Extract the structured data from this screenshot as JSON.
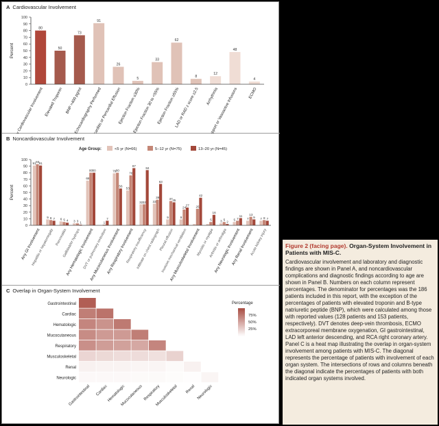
{
  "panelA": {
    "letter": "A",
    "title": "Cardiovascular Involvement",
    "ylabel": "Percent",
    "chart_data": {
      "type": "bar",
      "ylim": [
        0,
        100
      ],
      "yticks": [
        0,
        10,
        20,
        30,
        40,
        50,
        60,
        70,
        80,
        90,
        100
      ],
      "categories": [
        "Any Cardiovascular Involvement",
        "Elevated Troponin",
        "BNP >400 pg/ml",
        "Echocardiography Performed",
        "Pericarditis or Pericardial Effusion",
        "Ejection Fraction ≤30%",
        "Ejection Fraction 30 to <55%",
        "Ejection Fraction ≥55%",
        "LAD or RAD z score ≥2.5",
        "Arrhythmia",
        "Vasopressor Support or Vasoactive Infusions",
        "ECMO"
      ],
      "values": [
        80,
        50,
        73,
        91,
        26,
        5,
        33,
        62,
        8,
        12,
        48,
        4
      ],
      "colors": [
        "#b0473a",
        "#a55a4d",
        "#a55a4d",
        "#e0c2b7",
        "#e0c2b7",
        "#e0c2b7",
        "#e0c2b7",
        "#e0c2b7",
        "#e0c2b7",
        "#f0ddd5",
        "#f0ddd5",
        "#f0ddd5"
      ]
    }
  },
  "panelB": {
    "letter": "B",
    "title": "Noncardiovascular Involvement",
    "ylabel": "Percent",
    "legend_title": "Age Group:",
    "chart_data": {
      "type": "bar",
      "ylim": [
        0,
        100
      ],
      "yticks": [
        0,
        10,
        20,
        30,
        40,
        50,
        60,
        70,
        80,
        90,
        100
      ],
      "categories": [
        "Any GI Involvement",
        "Hepatitis or hepatomegaly",
        "Pancreatitis",
        "Gallbladder hydrops",
        "Any Hematologic Involvement",
        "DVT or pulmonary embolism",
        "Any Mucocutaneous Involvement",
        "Any Respiratory Involvement",
        "Respiratory insufficiency",
        "Infiltrate on chest radiograph",
        "Pleural effusion",
        "Invasive mechanical ventilation",
        "Any Musculoskeletal Involvement",
        "Myositis or myalgia",
        "Arthritis or arthralgia",
        "Any Neurologic Involvement",
        "Any Renal Involvement",
        "Acute kidney injury"
      ],
      "series": [
        {
          "name": "<5 yr (N=66)",
          "color": "#e2c3b9",
          "values": [
            91,
            9,
            6,
            3,
            68,
            0,
            79,
            53,
            32,
            33,
            9,
            9,
            2,
            2,
            3,
            5,
            7,
            7
          ]
        },
        {
          "name": "5–12 yr (N=75)",
          "color": "#c48676",
          "values": [
            93,
            8,
            5,
            3,
            80,
            1,
            80,
            76,
            32,
            39,
            37,
            24,
            25,
            5,
            5,
            7,
            13,
            8
          ]
        },
        {
          "name": "13–20 yr (N=45)",
          "color": "#a3483a",
          "values": [
            91,
            7,
            4,
            1,
            80,
            7,
            56,
            87,
            84,
            63,
            35,
            27,
            42,
            16,
            2,
            11,
            9,
            7
          ]
        }
      ],
      "data_labels": [
        [
          "91",
          "93",
          "91"
        ],
        [
          "9",
          "8",
          "7"
        ],
        [
          "6",
          "5",
          "4"
        ],
        [
          "3",
          "3",
          "1"
        ],
        [
          "68",
          "80",
          "80"
        ],
        [
          "",
          "1",
          "7"
        ],
        [
          "79",
          "80",
          "56"
        ],
        [
          "53",
          "76",
          "87"
        ],
        [
          "32",
          "32",
          "84"
        ],
        [
          "33",
          "39",
          "63"
        ],
        [
          "9",
          "37",
          "35"
        ],
        [
          "9",
          "24",
          "27"
        ],
        [
          "",
          "25",
          "42"
        ],
        [
          "",
          "5",
          "16"
        ],
        [
          "3",
          "5",
          "2"
        ],
        [
          "5",
          "7",
          "11"
        ],
        [
          "7",
          "13",
          "9"
        ],
        [
          "7",
          "8",
          "7"
        ]
      ]
    }
  },
  "panelC": {
    "letter": "C",
    "title": "Overlap in Organ-System Involvement",
    "legend_title": "Percentage",
    "legend_ticks": [
      "75%",
      "50%",
      "25%"
    ],
    "chart_data": {
      "type": "heatmap",
      "rows": [
        "Gastrointestinal",
        "Cardiac",
        "Hematologic",
        "Mucocutaneous",
        "Respiratory",
        "Musculoskeletal",
        "Renal",
        "Neurologic"
      ],
      "columns": [
        "Gastrointestinal",
        "Cardiac",
        "Hematologic",
        "Mucocutaneous",
        "Respiratory",
        "Musculoskeletal",
        "Renal",
        "Neurologic"
      ],
      "values": [
        [
          92,
          null,
          null,
          null,
          null,
          null,
          null,
          null
        ],
        [
          74,
          80,
          null,
          null,
          null,
          null,
          null,
          null
        ],
        [
          70,
          62,
          76,
          null,
          null,
          null,
          null,
          null
        ],
        [
          66,
          58,
          58,
          74,
          null,
          null,
          null,
          null
        ],
        [
          64,
          56,
          54,
          50,
          70,
          null,
          null,
          null
        ],
        [
          24,
          22,
          20,
          20,
          18,
          26,
          null,
          null
        ],
        [
          8,
          7,
          7,
          6,
          6,
          3,
          8,
          null
        ],
        [
          4,
          4,
          4,
          3,
          3,
          2,
          1,
          6
        ]
      ]
    }
  },
  "caption": {
    "title": "Figure 2 (facing page).",
    "title_rest": "Organ-System Involvement in Patients with MIS-C.",
    "text": "Cardiovascular involvement and laboratory and diagnostic findings are shown in Panel A, and noncardiovascular complications and diagnostic findings according to age are shown in Panel B. Numbers on each column represent percentages. The denominator for percentages was the 186 patients included in this report, with the exception of the percentages of patients with elevated troponin and B-type natriuretic peptide (BNP), which were calculated among those with reported values (128 patients and 153 patients, respectively). DVT denotes deep-vein thrombosis, ECMO extracorporeal membrane oxygenation, GI gastrointestinal, LAD left anterior descending, and RCA right coronary artery. Panel C is a heat map illustrating the overlap in organ-system involvement among patients with MIS-C. The diagonal represents the percentage of patients with involvement of each organ system. The intersections of rows and columns beneath the diagonal indicate the percentages of patients with both indicated organ systems involved."
  }
}
